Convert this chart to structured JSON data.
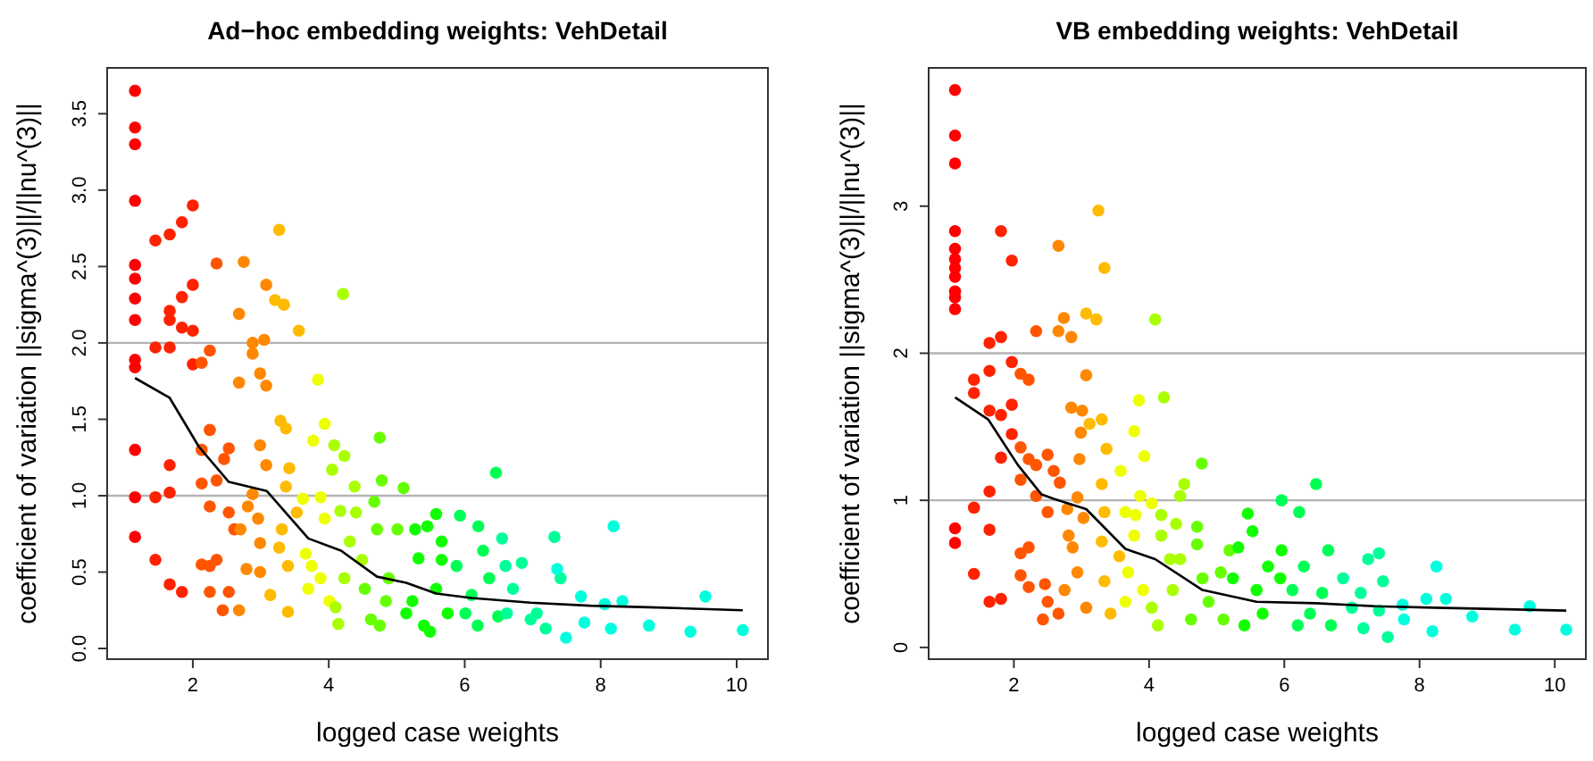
{
  "chart_data": [
    {
      "type": "scatter",
      "title": "Ad−hoc embedding weights: VehDetail",
      "xlabel": "logged case weights",
      "ylabel": "coefficient of variation ||sigma^(3)||/||nu^(3)||",
      "xlim": [
        0.74,
        10.46
      ],
      "xticks": [
        2,
        4,
        6,
        8,
        10
      ],
      "ylim": [
        -0.07,
        3.8
      ],
      "yticks": [
        {
          "value": 0,
          "label": "0.0"
        },
        {
          "value": 0.5,
          "label": "0.5"
        },
        {
          "value": 1,
          "label": "1.0"
        },
        {
          "value": 1.5,
          "label": "1.5"
        },
        {
          "value": 2,
          "label": "2.0"
        },
        {
          "value": 2.5,
          "label": "2.5"
        },
        {
          "value": 3,
          "label": "3.0"
        },
        {
          "value": 3.5,
          "label": "3.5"
        }
      ],
      "grid": false,
      "marker": "circle",
      "ref_lines": [
        {
          "axis": "y",
          "value": 1,
          "color": "#b3b3b3"
        },
        {
          "axis": "y",
          "value": 2,
          "color": "#b3b3b3"
        }
      ],
      "series": [
        {
          "color": "#ff0000",
          "x": [
            1.15,
            1.15,
            1.15,
            1.15,
            1.15,
            1.15,
            1.15,
            1.15,
            1.15,
            1.15,
            1.15,
            1.15,
            1.15
          ],
          "values": [
            3.65,
            3.41,
            3.3,
            2.93,
            2.51,
            2.42,
            2.29,
            2.15,
            1.89,
            1.84,
            1.3,
            0.99,
            0.73
          ]
        },
        {
          "color": "#ff2200",
          "x": [
            1.45,
            1.45,
            1.45,
            1.45,
            1.66,
            1.66,
            1.66,
            1.66,
            1.66,
            1.66,
            1.66,
            1.84,
            1.84,
            1.84,
            1.84,
            2.0,
            2.0,
            2.0,
            2.0
          ],
          "values": [
            2.67,
            1.97,
            0.99,
            0.58,
            2.71,
            2.21,
            2.15,
            1.97,
            1.2,
            1.02,
            0.42,
            2.79,
            2.3,
            2.1,
            0.37,
            2.9,
            2.38,
            2.08,
            1.86
          ]
        },
        {
          "color": "#ff5500",
          "x": [
            2.13,
            2.25,
            2.35,
            2.25,
            2.13,
            2.13,
            2.25,
            2.35,
            2.53,
            2.53,
            2.25,
            2.13,
            2.25,
            2.53,
            2.44,
            2.35,
            2.46,
            2.61
          ],
          "values": [
            1.87,
            1.95,
            2.52,
            1.43,
            1.3,
            1.08,
            0.93,
            1.1,
            1.31,
            0.89,
            0.54,
            0.55,
            0.37,
            0.37,
            0.25,
            0.58,
            1.24,
            0.78
          ]
        },
        {
          "color": "#ff8800",
          "x": [
            2.68,
            2.75,
            2.68,
            2.88,
            3.05,
            2.88,
            2.99,
            3.08,
            2.99,
            2.68,
            2.79,
            2.88,
            2.96,
            2.99,
            3.08,
            2.81,
            2.99,
            2.7,
            3.08
          ],
          "values": [
            2.19,
            2.53,
            1.74,
            2.0,
            2.02,
            1.93,
            1.8,
            1.72,
            1.33,
            0.25,
            0.52,
            1.01,
            0.85,
            0.69,
            1.2,
            0.93,
            0.5,
            0.78,
            2.38
          ]
        },
        {
          "color": "#ffbb00",
          "x": [
            3.27,
            3.21,
            3.34,
            3.29,
            3.37,
            3.42,
            3.37,
            3.56,
            3.27,
            3.4,
            3.4,
            3.14,
            3.53,
            3.31
          ],
          "values": [
            2.74,
            2.28,
            2.25,
            1.49,
            1.44,
            1.18,
            1.06,
            2.08,
            0.66,
            0.54,
            0.24,
            0.35,
            0.89,
            0.78
          ]
        },
        {
          "color": "#eeff00",
          "x": [
            3.84,
            3.77,
            3.88,
            3.66,
            3.75,
            3.88,
            3.94,
            4.01,
            3.62,
            3.7,
            3.94
          ],
          "values": [
            1.76,
            1.36,
            0.99,
            0.62,
            0.54,
            0.46,
            0.85,
            0.31,
            0.98,
            0.39,
            1.47
          ]
        },
        {
          "color": "#aaff00",
          "x": [
            4.21,
            4.08,
            4.23,
            4.05,
            4.38,
            4.17,
            4.14,
            4.23,
            4.4,
            4.31,
            4.1,
            4.49
          ],
          "values": [
            2.32,
            1.33,
            1.26,
            1.17,
            1.06,
            0.9,
            0.16,
            0.46,
            0.89,
            0.7,
            0.27,
            0.58
          ]
        },
        {
          "color": "#66ff00",
          "x": [
            4.75,
            4.78,
            4.67,
            4.71,
            4.53,
            4.62,
            4.88,
            4.84,
            5.01,
            5.1,
            4.75
          ],
          "values": [
            1.38,
            1.1,
            0.96,
            0.78,
            0.39,
            0.19,
            0.46,
            0.31,
            0.78,
            1.05,
            0.15
          ]
        },
        {
          "color": "#11ff00",
          "x": [
            5.58,
            5.45,
            5.27,
            5.32,
            5.66,
            5.14,
            5.4,
            5.23,
            5.58,
            5.49,
            5.75,
            5.66
          ],
          "values": [
            0.88,
            0.8,
            0.78,
            0.59,
            0.7,
            0.23,
            0.15,
            0.31,
            0.39,
            0.11,
            0.23,
            0.58
          ]
        },
        {
          "color": "#00ff55",
          "x": [
            5.93,
            6.2,
            6.46,
            6.27,
            6.1,
            6.36,
            6.01,
            6.19,
            5.88,
            6.49
          ],
          "values": [
            0.87,
            0.8,
            1.15,
            0.64,
            0.35,
            0.46,
            0.23,
            0.15,
            0.54,
            0.21
          ]
        },
        {
          "color": "#00ff99",
          "x": [
            6.55,
            6.84,
            6.6,
            6.71,
            6.62,
            6.97,
            7.32,
            7.06,
            7.19,
            7.41
          ],
          "values": [
            0.72,
            0.56,
            0.54,
            0.39,
            0.23,
            0.19,
            0.73,
            0.23,
            0.13,
            0.46
          ]
        },
        {
          "color": "#00ffdd",
          "x": [
            8.19,
            7.36,
            7.49,
            7.71,
            7.76,
            8.06,
            8.15,
            8.32,
            8.71,
            9.32,
            9.54,
            10.09
          ],
          "values": [
            0.8,
            0.52,
            0.07,
            0.34,
            0.17,
            0.29,
            0.13,
            0.31,
            0.15,
            0.11,
            0.34,
            0.12
          ]
        },
        {
          "type": "line",
          "marker": "none",
          "color": "#000000",
          "x": [
            1.15,
            1.66,
            2.09,
            2.53,
            3.09,
            3.7,
            4.18,
            4.71,
            5.14,
            5.58,
            6.1,
            6.97,
            7.84,
            8.71,
            10.09
          ],
          "values": [
            1.77,
            1.64,
            1.32,
            1.09,
            1.03,
            0.72,
            0.64,
            0.47,
            0.43,
            0.36,
            0.33,
            0.3,
            0.28,
            0.27,
            0.25
          ]
        }
      ]
    },
    {
      "type": "scatter",
      "title": "VB embedding weights: VehDetail",
      "xlabel": "logged case weights",
      "ylabel": "coefficient of variation ||sigma^(3)||/||nu^(3)||",
      "xlim": [
        0.74,
        10.46
      ],
      "xticks": [
        2,
        4,
        6,
        8,
        10
      ],
      "ylim": [
        -0.08,
        3.94
      ],
      "yticks": [
        0,
        1,
        2,
        3
      ],
      "grid": false,
      "marker": "circle",
      "ref_lines": [
        {
          "axis": "y",
          "value": 1,
          "color": "#b3b3b3"
        },
        {
          "axis": "y",
          "value": 2,
          "color": "#b3b3b3"
        }
      ],
      "series": [
        {
          "color": "#ff0000",
          "x": [
            1.13,
            1.13,
            1.13,
            1.13,
            1.13,
            1.13,
            1.13,
            1.13,
            1.13,
            1.13,
            1.13,
            1.13,
            1.13
          ],
          "values": [
            3.79,
            3.48,
            3.29,
            2.83,
            2.71,
            2.64,
            2.58,
            2.52,
            2.42,
            2.38,
            2.3,
            0.81,
            0.71
          ]
        },
        {
          "color": "#ff2200",
          "x": [
            1.41,
            1.41,
            1.41,
            1.41,
            1.64,
            1.64,
            1.64,
            1.64,
            1.64,
            1.64,
            1.81,
            1.81,
            1.81,
            1.81,
            1.81,
            1.97,
            1.97,
            1.97,
            1.97
          ],
          "values": [
            1.82,
            1.73,
            0.95,
            0.5,
            2.07,
            1.88,
            1.61,
            1.06,
            0.8,
            0.31,
            2.83,
            2.11,
            1.58,
            1.29,
            0.33,
            2.63,
            1.94,
            1.65,
            1.45
          ]
        },
        {
          "color": "#ff5500",
          "x": [
            2.1,
            2.22,
            2.1,
            2.1,
            2.22,
            2.33,
            2.33,
            2.33,
            2.1,
            2.1,
            2.22,
            2.22,
            2.43,
            2.5,
            2.46,
            2.5,
            2.59,
            2.5,
            2.66,
            2.68
          ],
          "values": [
            1.86,
            1.82,
            1.36,
            1.14,
            1.28,
            2.15,
            1.24,
            1.03,
            0.64,
            0.49,
            0.68,
            0.41,
            0.19,
            0.31,
            0.43,
            1.31,
            1.2,
            0.92,
            0.23,
            1.12
          ]
        },
        {
          "color": "#ff8800",
          "x": [
            2.66,
            2.74,
            2.66,
            2.85,
            2.85,
            3.01,
            2.94,
            2.79,
            2.81,
            2.87,
            2.75,
            2.94,
            2.99,
            2.97,
            3.07,
            3.07,
            3.03
          ],
          "values": [
            2.73,
            2.24,
            2.15,
            2.11,
            1.63,
            1.61,
            1.02,
            0.94,
            0.76,
            0.68,
            0.39,
            0.51,
            1.46,
            1.28,
            1.85,
            0.27,
            0.88
          ]
        },
        {
          "color": "#ffbb00",
          "x": [
            3.07,
            3.22,
            3.25,
            3.34,
            3.3,
            3.12,
            3.37,
            3.3,
            3.3,
            3.34,
            3.43,
            3.56,
            3.34
          ],
          "values": [
            2.27,
            2.23,
            2.97,
            2.58,
            1.55,
            1.52,
            1.35,
            1.11,
            0.72,
            0.45,
            0.23,
            0.62,
            0.92
          ]
        },
        {
          "color": "#eeff00",
          "x": [
            3.58,
            3.78,
            3.85,
            3.65,
            3.8,
            3.93,
            3.87,
            3.69,
            3.65,
            3.91,
            3.78,
            4.04
          ],
          "values": [
            1.2,
            1.47,
            1.68,
            0.92,
            0.9,
            1.3,
            1.03,
            0.51,
            0.31,
            0.39,
            0.76,
            0.98
          ]
        },
        {
          "color": "#aaff00",
          "x": [
            4.09,
            4.22,
            4.18,
            4.18,
            4.13,
            4.4,
            4.35,
            4.52,
            4.46,
            4.31,
            4.04,
            4.46
          ],
          "values": [
            2.23,
            1.7,
            0.9,
            0.76,
            0.15,
            0.84,
            0.39,
            1.11,
            1.03,
            0.6,
            0.27,
            0.6
          ]
        },
        {
          "color": "#66ff00",
          "x": [
            4.78,
            4.71,
            4.71,
            4.62,
            4.79,
            4.88,
            5.06,
            5.19,
            5.1
          ],
          "values": [
            1.25,
            0.82,
            0.7,
            0.19,
            0.47,
            0.31,
            0.51,
            0.66,
            0.19
          ]
        },
        {
          "color": "#11ff00",
          "x": [
            5.46,
            5.53,
            5.32,
            5.24,
            5.59,
            5.76,
            5.41,
            5.68,
            5.94,
            5.96
          ],
          "values": [
            0.91,
            0.79,
            0.68,
            0.47,
            0.39,
            0.55,
            0.15,
            0.23,
            0.47,
            0.66
          ]
        },
        {
          "color": "#00ff55",
          "x": [
            5.96,
            6.22,
            6.12,
            6.29,
            6.38,
            6.47,
            6.65,
            6.56,
            6.69,
            6.2
          ],
          "values": [
            1.0,
            0.92,
            0.39,
            0.55,
            0.23,
            1.11,
            0.66,
            0.37,
            0.15,
            0.15
          ]
        },
        {
          "color": "#00ff99",
          "x": [
            6.87,
            7.13,
            7.24,
            7.4,
            7.17,
            7.4,
            7.46,
            7.53,
            7.0
          ],
          "values": [
            0.47,
            0.37,
            0.6,
            0.64,
            0.13,
            0.25,
            0.45,
            0.07,
            0.27
          ]
        },
        {
          "color": "#00ffdd",
          "x": [
            7.75,
            7.77,
            8.1,
            8.25,
            8.19,
            8.39,
            8.78,
            9.41,
            9.63,
            10.17
          ],
          "values": [
            0.29,
            0.19,
            0.33,
            0.55,
            0.11,
            0.33,
            0.21,
            0.12,
            0.28,
            0.12
          ]
        },
        {
          "type": "line",
          "marker": "none",
          "color": "#000000",
          "x": [
            1.13,
            1.62,
            2.06,
            2.41,
            2.59,
            3.07,
            3.65,
            4.09,
            4.79,
            5.59,
            6.47,
            7.35,
            8.23,
            10.17
          ],
          "values": [
            1.7,
            1.55,
            1.24,
            1.04,
            1.01,
            0.94,
            0.67,
            0.6,
            0.39,
            0.31,
            0.3,
            0.28,
            0.27,
            0.25
          ]
        }
      ]
    }
  ]
}
